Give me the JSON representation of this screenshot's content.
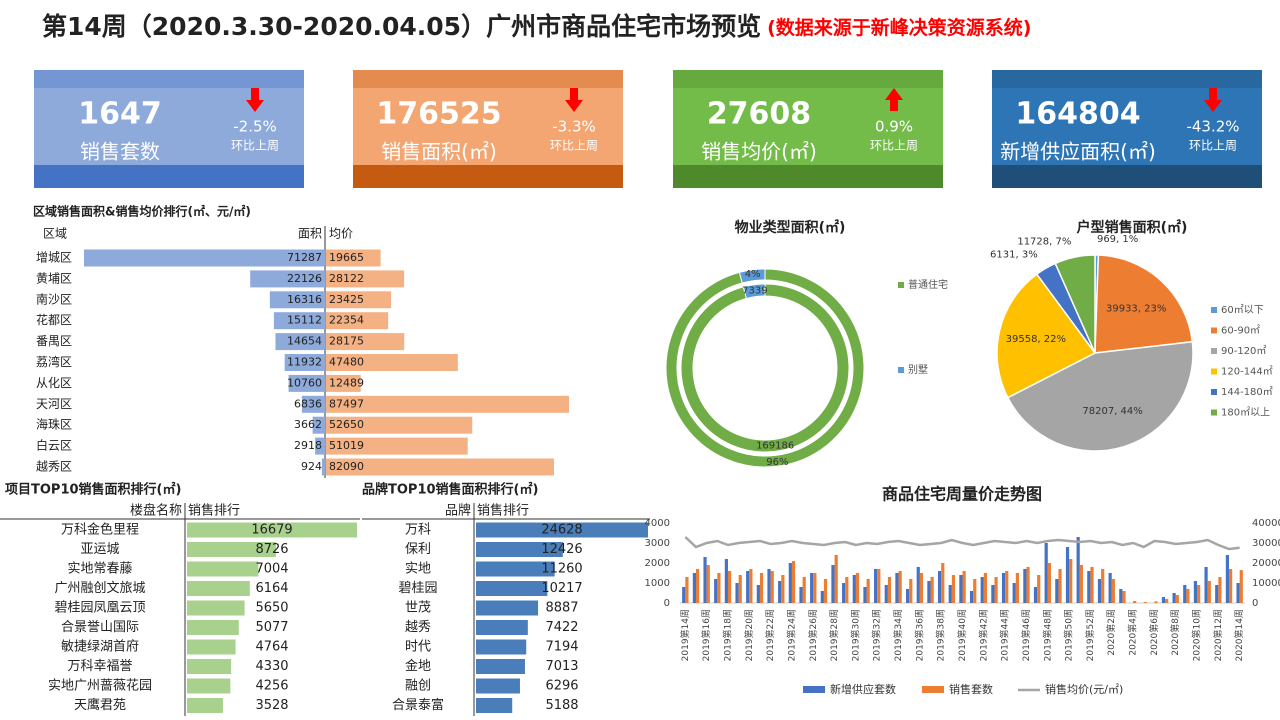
{
  "header": {
    "title": "第14周（2020.3.30-2020.04.05）广州市商品住宅市场预览",
    "source": "(数据来源于新峰决策资源系统)"
  },
  "kpis": [
    {
      "value": "1647",
      "label": "销售套数",
      "change": "-2.5%",
      "direction": "down",
      "note": "环比上周",
      "color": "#8eaadb",
      "band": "#4472c4"
    },
    {
      "value": "176525",
      "label": "销售面积(㎡)",
      "change": "-3.3%",
      "direction": "down",
      "note": "环比上周",
      "color": "#f4a672",
      "band": "#c55a11"
    },
    {
      "value": "27608",
      "label": "销售均价(㎡)",
      "change": "0.9%",
      "direction": "up",
      "note": "环比上周",
      "color": "#74bc4a",
      "band": "#4e8a2b"
    },
    {
      "value": "164804",
      "label": "新增供应面积(㎡)",
      "change": "-43.2%",
      "direction": "down",
      "note": "环比上周",
      "color": "#2e75b6",
      "band": "#1f4e79"
    }
  ],
  "chart_data": [
    {
      "type": "butterfly",
      "title": "区域销售面积&销售均价排行(㎡、元/㎡)",
      "x_label": "区域",
      "categories": [
        "增城区",
        "黄埔区",
        "南沙区",
        "花都区",
        "番禺区",
        "荔湾区",
        "从化区",
        "天河区",
        "海珠区",
        "白云区",
        "越秀区"
      ],
      "series": [
        {
          "name": "面积",
          "color": "#8eaadb",
          "values": [
            71287,
            22126,
            16316,
            15112,
            14654,
            11932,
            10760,
            6836,
            3662,
            2918,
            924
          ]
        },
        {
          "name": "均价",
          "color": "#f4b183",
          "values": [
            19665,
            28122,
            23425,
            22354,
            28175,
            47480,
            12489,
            87497,
            52650,
            51019,
            82090
          ]
        }
      ]
    },
    {
      "type": "table-bar",
      "title": "项目TOP10销售面积排行(㎡)",
      "x_label": "楼盘名称",
      "y_label": "销售排行",
      "color": "#a9d18e",
      "categories": [
        "万科金色里程",
        "亚运城",
        "实地常春藤",
        "广州融创文旅城",
        "碧桂园凤凰云顶",
        "合景誉山国际",
        "敏捷绿湖首府",
        "万科幸福誉",
        "实地广州蔷薇花园",
        "天鹰君苑"
      ],
      "values": [
        16679,
        8726,
        7004,
        6164,
        5650,
        5077,
        4764,
        4330,
        4256,
        3528
      ]
    },
    {
      "type": "table-bar",
      "title": "品牌TOP10销售面积排行(㎡)",
      "x_label": "品牌",
      "y_label": "销售排行",
      "color": "#4a7ebb",
      "categories": [
        "万科",
        "保利",
        "实地",
        "碧桂园",
        "世茂",
        "越秀",
        "时代",
        "金地",
        "融创",
        "合景泰富"
      ],
      "values": [
        24628,
        12426,
        11260,
        10217,
        8887,
        7422,
        7194,
        7013,
        6296,
        5188
      ]
    },
    {
      "type": "donut",
      "title": "物业类型面积(㎡)",
      "categories": [
        "普通住宅",
        "别墅"
      ],
      "values": [
        169186,
        7339
      ],
      "percents": [
        96,
        4
      ],
      "value_labels": [
        "96%",
        "4%"
      ],
      "colors": [
        "#70ad47",
        "#5b9bd5"
      ]
    },
    {
      "type": "pie",
      "title": "户型销售面积(㎡)",
      "categories": [
        "60㎡以下",
        "60-90㎡",
        "90-120㎡",
        "120-144㎡",
        "144-180㎡",
        "180㎡以上"
      ],
      "values": [
        969,
        39933,
        78207,
        39558,
        6131,
        11728
      ],
      "value_labels": [
        "969, 1%",
        "39933, 23%",
        "78207, 44%",
        "39558, 22%",
        "6131, 3%",
        "11728, 7%"
      ],
      "colors": [
        "#5b9bd5",
        "#ed7d31",
        "#a5a5a5",
        "#ffc000",
        "#4472c4",
        "#70ad47"
      ]
    },
    {
      "type": "combo",
      "title": "商品住宅周量价走势图",
      "categories": [
        "2019第14周",
        null,
        "2019第16周",
        null,
        "2019第18周",
        null,
        "2019第20周",
        null,
        "2019第22周",
        null,
        "2019第24周",
        null,
        "2019第26周",
        null,
        "2019第28周",
        null,
        "2019第30周",
        null,
        "2019第32周",
        null,
        "2019第34周",
        null,
        "2019第36周",
        null,
        "2019第38周",
        null,
        "2019第40周",
        null,
        "2019第42周",
        null,
        "2019第44周",
        null,
        "2019第46周",
        null,
        "2019第48周",
        null,
        "2019第50周",
        null,
        "2019第52周",
        null,
        "2020第2周",
        null,
        "2020第4周",
        null,
        "2020第6周",
        null,
        "2020第8周",
        null,
        "2020第10周",
        null,
        "2020第12周",
        null,
        "2020第14周"
      ],
      "series": [
        {
          "name": "新增供应套数",
          "type": "bar",
          "axis": "y",
          "color": "#4472c4",
          "values": [
            800,
            1500,
            2300,
            1200,
            2200,
            1000,
            1600,
            900,
            1700,
            1100,
            2000,
            800,
            1500,
            600,
            1900,
            1000,
            1400,
            800,
            1700,
            900,
            1500,
            700,
            1800,
            1100,
            1600,
            900,
            1400,
            600,
            1300,
            900,
            1500,
            1000,
            1700,
            800,
            3000,
            1200,
            2800,
            3300,
            1600,
            1200,
            1500,
            700,
            0,
            0,
            0,
            300,
            500,
            900,
            1100,
            1800,
            900,
            2400,
            1000
          ]
        },
        {
          "name": "销售套数",
          "type": "bar",
          "axis": "y",
          "color": "#ed7d31",
          "values": [
            1300,
            1700,
            1900,
            1500,
            1600,
            1400,
            1700,
            1500,
            1600,
            1400,
            2100,
            1300,
            1500,
            1200,
            2400,
            1300,
            1500,
            1200,
            1700,
            1300,
            1600,
            1200,
            1500,
            1300,
            2000,
            1400,
            1600,
            1200,
            1500,
            1300,
            1600,
            1500,
            1800,
            1400,
            2000,
            1700,
            2200,
            1900,
            1800,
            1700,
            1200,
            600,
            100,
            50,
            80,
            200,
            400,
            700,
            900,
            1100,
            1300,
            1700,
            1647
          ]
        },
        {
          "name": "销售均价(元/㎡)",
          "type": "line",
          "axis": "y2",
          "color": "#a5a5a5",
          "values": [
            33000,
            28000,
            30000,
            31000,
            29000,
            30000,
            30500,
            31000,
            29500,
            30000,
            31000,
            30000,
            29500,
            29000,
            30000,
            30500,
            29000,
            30000,
            29500,
            30500,
            31000,
            30000,
            29000,
            29500,
            30000,
            31500,
            30000,
            29000,
            30000,
            31000,
            30500,
            30000,
            31000,
            30000,
            31000,
            31500,
            31000,
            30500,
            31000,
            30000,
            30500,
            29000,
            30000,
            28000,
            31000,
            30500,
            29500,
            30000,
            30500,
            31500,
            29000,
            27000,
            27608
          ]
        }
      ],
      "ylim": [
        0,
        4000
      ],
      "yticks": [
        0,
        1000,
        2000,
        3000,
        4000
      ],
      "y2lim": [
        0,
        40000
      ],
      "y2ticks": [
        0,
        10000,
        20000,
        30000,
        40000
      ]
    }
  ]
}
